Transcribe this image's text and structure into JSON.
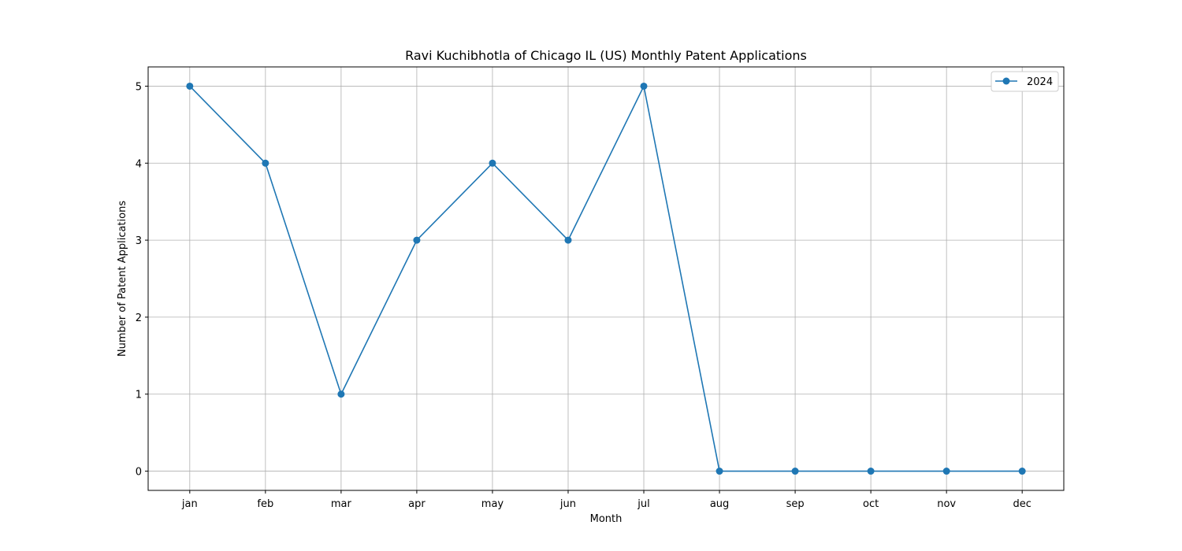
{
  "chart_data": {
    "type": "line",
    "title": "Ravi Kuchibhotla of Chicago IL (US) Monthly Patent Applications",
    "xlabel": "Month",
    "ylabel": "Number of Patent Applications",
    "categories": [
      "jan",
      "feb",
      "mar",
      "apr",
      "may",
      "jun",
      "jul",
      "aug",
      "sep",
      "oct",
      "nov",
      "dec"
    ],
    "series": [
      {
        "name": "2024",
        "values": [
          5,
          4,
          1,
          3,
          4,
          3,
          5,
          0,
          0,
          0,
          0,
          0
        ],
        "color": "#1f77b4",
        "marker": "circle"
      }
    ],
    "yticks": [
      0,
      1,
      2,
      3,
      4,
      5
    ],
    "ylim": [
      -0.25,
      5.25
    ],
    "grid": true,
    "legend": "top-right"
  }
}
